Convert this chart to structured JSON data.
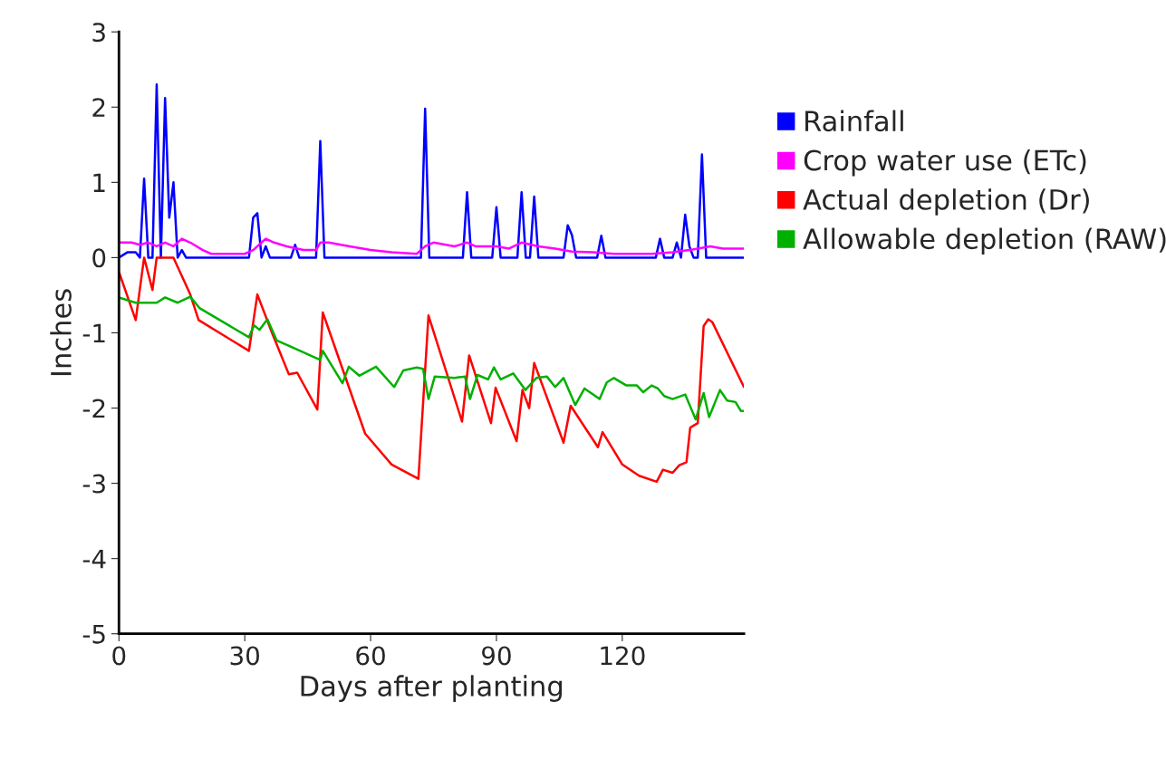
{
  "chart_data": {
    "type": "line",
    "xlabel": "Days after planting",
    "ylabel": "Inches",
    "xlim": [
      0,
      149
    ],
    "xticks": [
      0,
      30,
      60,
      90,
      120
    ],
    "ylim": [
      -5,
      3
    ],
    "yticks": [
      -5,
      -4,
      -3,
      -2,
      -1,
      0,
      1,
      2,
      3
    ],
    "grid": false,
    "legend": "right",
    "marker": "none",
    "line_style": "solid",
    "series": [
      {
        "name": "Rainfall",
        "color": "#0000ff",
        "x": [
          0,
          2,
          4,
          5,
          6,
          7,
          8,
          9,
          10,
          11,
          12,
          13,
          14,
          15,
          16,
          31,
          32,
          33,
          34,
          35,
          36,
          41,
          42,
          43,
          47,
          48,
          49,
          72,
          73,
          74,
          82,
          83,
          84,
          89,
          90,
          91,
          95,
          96,
          97,
          98,
          99,
          100,
          106,
          107,
          108,
          109,
          114,
          115,
          116,
          128,
          129,
          130,
          132,
          133,
          134,
          135,
          136,
          137,
          138,
          139,
          140,
          149
        ],
        "values": [
          0,
          0.07,
          0.07,
          0,
          1.05,
          0,
          0,
          2.3,
          0,
          2.12,
          0.53,
          1.0,
          0,
          0.1,
          0,
          0,
          0.53,
          0.59,
          0,
          0.15,
          0,
          0,
          0.17,
          0,
          0,
          1.55,
          0,
          0,
          1.98,
          0,
          0,
          0.87,
          0,
          0,
          0.67,
          0,
          0,
          0.87,
          0,
          0,
          0.81,
          0,
          0,
          0.43,
          0.3,
          0,
          0,
          0.29,
          0,
          0,
          0.25,
          0,
          0,
          0.2,
          0,
          0.57,
          0.15,
          0,
          0,
          1.37,
          0,
          0
        ]
      },
      {
        "name": "Crop water use (ETc)",
        "color": "#ff00ff",
        "x": [
          0,
          3,
          5,
          7,
          9,
          11,
          13,
          15,
          17,
          20,
          22,
          30,
          32,
          34,
          35,
          37,
          40,
          44,
          47,
          48,
          50,
          55,
          60,
          65,
          71,
          73,
          75,
          80,
          83,
          85,
          90,
          93,
          96,
          100,
          104,
          108,
          113,
          118,
          127,
          132,
          136,
          138,
          141,
          144,
          149
        ],
        "values": [
          0.2,
          0.2,
          0.17,
          0.2,
          0.15,
          0.2,
          0.15,
          0.25,
          0.2,
          0.1,
          0.05,
          0.05,
          0.1,
          0.2,
          0.25,
          0.2,
          0.15,
          0.1,
          0.1,
          0.2,
          0.2,
          0.15,
          0.1,
          0.07,
          0.05,
          0.15,
          0.2,
          0.15,
          0.2,
          0.15,
          0.15,
          0.12,
          0.2,
          0.15,
          0.12,
          0.08,
          0.07,
          0.05,
          0.05,
          0.07,
          0.1,
          0.12,
          0.15,
          0.12,
          0.12
        ]
      },
      {
        "name": "Actual depletion (Dr)",
        "color": "#ff0000",
        "x": [
          0,
          4,
          6,
          8,
          9,
          13,
          17,
          19,
          31,
          33,
          36.5,
          40.5,
          42.5,
          47.3,
          48.6,
          58.7,
          65,
          71.4,
          73.8,
          81.8,
          83.5,
          88.7,
          89.8,
          94.8,
          96.2,
          97.8,
          99,
          106,
          107.7,
          114.2,
          115.3,
          120,
          124,
          128.2,
          129.7,
          132,
          133.6,
          135.3,
          136.2,
          138,
          139.4,
          140.5,
          141.5,
          149
        ],
        "values": [
          -0.19,
          -0.83,
          0,
          -0.43,
          0,
          0,
          -0.49,
          -0.83,
          -1.24,
          -0.49,
          -1.0,
          -1.55,
          -1.53,
          -2.02,
          -0.73,
          -2.34,
          -2.75,
          -2.94,
          -0.77,
          -2.18,
          -1.3,
          -2.2,
          -1.73,
          -2.44,
          -1.76,
          -2.0,
          -1.4,
          -2.46,
          -1.97,
          -2.52,
          -2.32,
          -2.75,
          -2.9,
          -2.98,
          -2.82,
          -2.86,
          -2.76,
          -2.72,
          -2.26,
          -2.2,
          -0.91,
          -0.82,
          -0.86,
          -1.72
        ]
      },
      {
        "name": "Allowable depletion (RAW)",
        "color": "#00b000",
        "x": [
          0,
          4,
          9,
          11,
          14,
          17,
          19.2,
          31,
          32.2,
          33.5,
          35.4,
          37.6,
          40.8,
          48,
          48.6,
          53.3,
          54.8,
          57.3,
          61.3,
          65.6,
          67.8,
          71,
          72.5,
          73.8,
          75.3,
          80,
          82.5,
          83.7,
          85.5,
          88,
          89.4,
          91,
          94,
          96.9,
          99.5,
          102,
          104,
          106,
          108.8,
          111,
          114.6,
          116.3,
          118,
          121,
          123.5,
          125,
          127,
          128.5,
          130,
          132,
          135,
          137.5,
          139.4,
          140.7,
          143.3,
          145,
          147,
          148.3,
          149
        ],
        "values": [
          -0.53,
          -0.6,
          -0.6,
          -0.53,
          -0.6,
          -0.52,
          -0.67,
          -1.06,
          -0.9,
          -0.96,
          -0.82,
          -1.1,
          -1.18,
          -1.36,
          -1.24,
          -1.67,
          -1.45,
          -1.57,
          -1.45,
          -1.72,
          -1.5,
          -1.46,
          -1.48,
          -1.88,
          -1.58,
          -1.6,
          -1.58,
          -1.88,
          -1.56,
          -1.62,
          -1.46,
          -1.62,
          -1.54,
          -1.76,
          -1.6,
          -1.58,
          -1.72,
          -1.6,
          -1.96,
          -1.74,
          -1.88,
          -1.66,
          -1.6,
          -1.7,
          -1.7,
          -1.79,
          -1.7,
          -1.74,
          -1.84,
          -1.88,
          -1.82,
          -2.15,
          -1.8,
          -2.12,
          -1.76,
          -1.9,
          -1.92,
          -2.04,
          -2.04
        ]
      }
    ]
  }
}
